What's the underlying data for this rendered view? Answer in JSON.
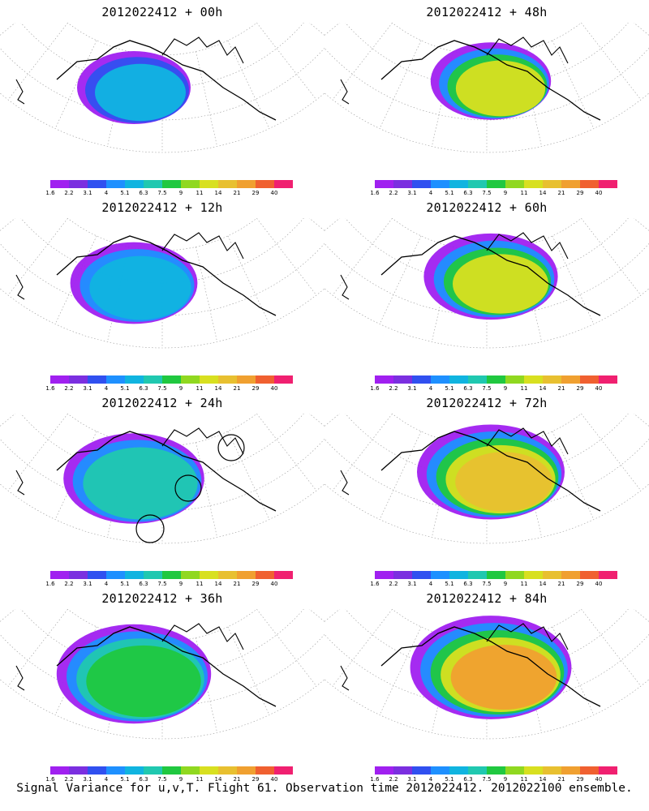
{
  "panels": [
    {
      "title": "2012022412 + 00h"
    },
    {
      "title": "2012022412 + 48h"
    },
    {
      "title": "2012022412 + 12h"
    },
    {
      "title": "2012022412 + 60h"
    },
    {
      "title": "2012022412 + 24h"
    },
    {
      "title": "2012022412 + 72h"
    },
    {
      "title": "2012022412 + 36h"
    },
    {
      "title": "2012022412 + 84h"
    }
  ],
  "colorbar": {
    "labels": [
      "1.6",
      "2.2",
      "3.1",
      "4",
      "5.1",
      "6.3",
      "7.5",
      "9",
      "11",
      "14",
      "21",
      "29",
      "40"
    ],
    "colors": [
      "#a020f0",
      "#7b2fe0",
      "#3050f0",
      "#1e90ff",
      "#10b4e0",
      "#20c8b0",
      "#20c840",
      "#90d820",
      "#d8e020",
      "#e8c030",
      "#f0a030",
      "#f06030",
      "#f02070"
    ]
  },
  "caption": "Signal Variance for u,v,T. Flight 61. Observation time 2012022412. 2012022100 ensemble."
}
